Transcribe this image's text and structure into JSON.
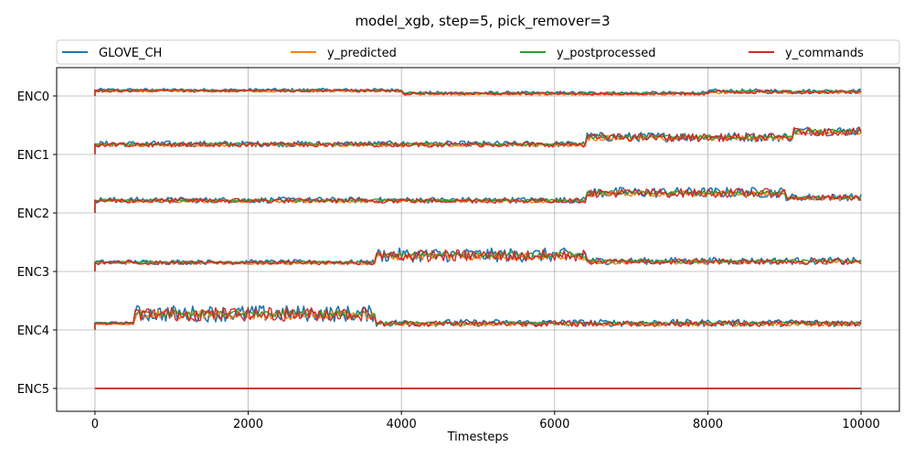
{
  "chart_data": {
    "type": "line",
    "title": "model_xgb, step=5, pick_remover=3",
    "xlabel": "Timesteps",
    "ylabel": "",
    "xlim": [
      -500,
      10500
    ],
    "xticks": [
      0,
      2000,
      4000,
      6000,
      8000,
      10000
    ],
    "grid": true,
    "legend_position": "top",
    "channels": [
      "ENC0",
      "ENC1",
      "ENC2",
      "ENC3",
      "ENC4",
      "ENC5"
    ],
    "series": [
      {
        "name": "GLOVE_CH",
        "color": "#1f77b4"
      },
      {
        "name": "y_predicted",
        "color": "#ff7f0e"
      },
      {
        "name": "y_postprocessed",
        "color": "#2ca02c"
      },
      {
        "name": "y_commands",
        "color": "#d62728"
      }
    ],
    "channel_segments": {
      "ENC0": [
        {
          "x0": 0,
          "x1": 4000,
          "offset": 0.1,
          "noise": 0.03
        },
        {
          "x0": 4000,
          "x1": 8000,
          "offset": 0.05,
          "noise": 0.03
        },
        {
          "x0": 8000,
          "x1": 10000,
          "offset": 0.08,
          "noise": 0.04
        }
      ],
      "ENC1": [
        {
          "x0": 0,
          "x1": 6400,
          "offset": 0.18,
          "noise": 0.05
        },
        {
          "x0": 6400,
          "x1": 9100,
          "offset": 0.3,
          "noise": 0.08
        },
        {
          "x0": 9100,
          "x1": 10000,
          "offset": 0.4,
          "noise": 0.08
        }
      ],
      "ENC2": [
        {
          "x0": 0,
          "x1": 6400,
          "offset": 0.22,
          "noise": 0.05
        },
        {
          "x0": 6400,
          "x1": 9000,
          "offset": 0.35,
          "noise": 0.09
        },
        {
          "x0": 9000,
          "x1": 10000,
          "offset": 0.27,
          "noise": 0.06
        }
      ],
      "ENC3": [
        {
          "x0": 0,
          "x1": 3650,
          "offset": 0.16,
          "noise": 0.04
        },
        {
          "x0": 3650,
          "x1": 6400,
          "offset": 0.28,
          "noise": 0.12
        },
        {
          "x0": 6400,
          "x1": 10000,
          "offset": 0.18,
          "noise": 0.06
        }
      ],
      "ENC4": [
        {
          "x0": 0,
          "x1": 520,
          "offset": 0.12,
          "noise": 0.02
        },
        {
          "x0": 520,
          "x1": 3650,
          "offset": 0.28,
          "noise": 0.14
        },
        {
          "x0": 3650,
          "x1": 10000,
          "offset": 0.12,
          "noise": 0.06
        }
      ],
      "ENC5": [
        {
          "x0": 0,
          "x1": 10000,
          "offset": 0.0,
          "noise": 0.0
        }
      ]
    }
  }
}
